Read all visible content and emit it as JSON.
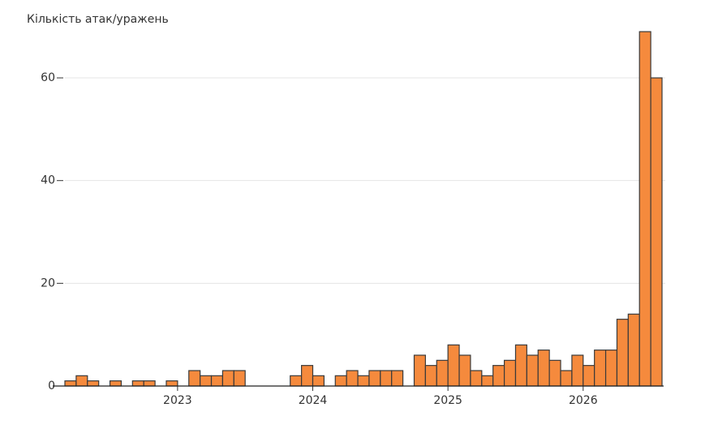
{
  "chart_data": {
    "type": "bar",
    "y_axis_title": "Кількість атак/уражень",
    "categories": [
      null,
      null,
      null,
      null,
      null,
      null,
      null,
      null,
      null,
      null,
      "2023",
      null,
      null,
      null,
      null,
      null,
      null,
      null,
      null,
      null,
      null,
      null,
      "2024",
      null,
      null,
      null,
      null,
      null,
      null,
      null,
      null,
      null,
      null,
      null,
      "2025",
      null,
      null,
      null,
      null,
      null,
      null,
      null,
      null,
      null,
      null,
      null,
      "2026",
      null,
      null,
      null,
      null,
      null,
      null
    ],
    "values": [
      1,
      2,
      1,
      0,
      1,
      0,
      1,
      1,
      0,
      1,
      0,
      3,
      2,
      2,
      3,
      3,
      0,
      0,
      0,
      0,
      2,
      4,
      2,
      0,
      2,
      3,
      2,
      3,
      3,
      3,
      0,
      6,
      4,
      5,
      8,
      6,
      3,
      2,
      4,
      5,
      8,
      6,
      7,
      5,
      3,
      6,
      4,
      7,
      7,
      13,
      14,
      69,
      60
    ],
    "color": "#f58a3d",
    "ylim": [
      0,
      70
    ],
    "yticks": [
      0,
      20,
      40,
      60
    ],
    "grid": true
  }
}
